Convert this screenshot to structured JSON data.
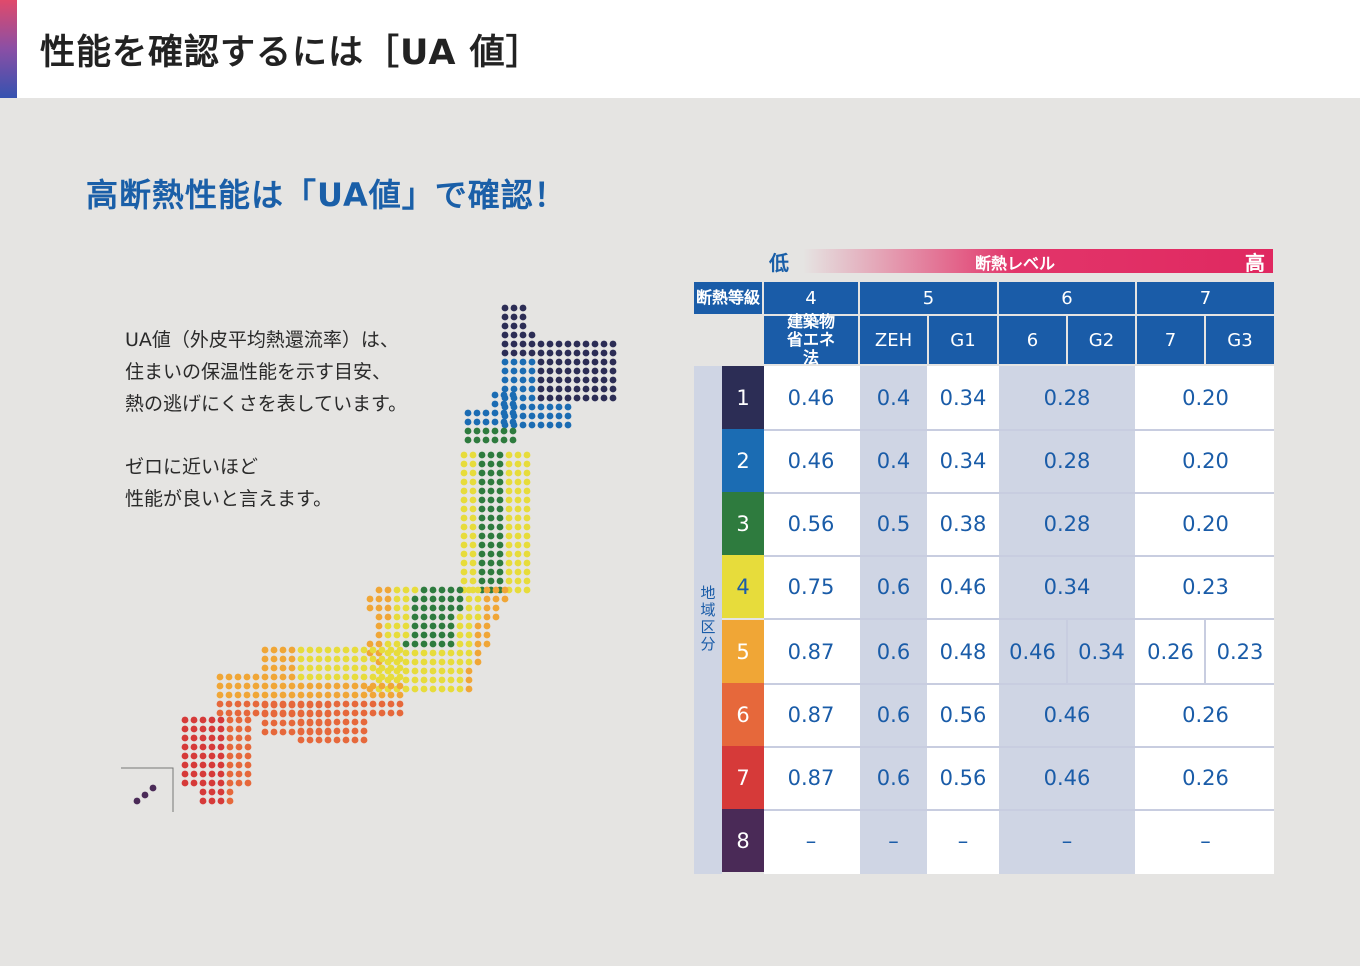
{
  "header": {
    "title": "性能を確認するには［UA 値］"
  },
  "subheading": "高断熱性能は「UA値」で確認！",
  "description": {
    "lines": [
      "UA値（外皮平均熱還流率）は、",
      "住まいの保温性能を示す目安、",
      "熱の逃げにくさを表しています。"
    ],
    "lines2": [
      "ゼロに近いほど",
      "性能が良いと言えます。"
    ]
  },
  "colors": {
    "region1": "#2c2d55",
    "region2": "#1b6cb3",
    "region3": "#2e7b3e",
    "region4": "#e7dc3b",
    "region5": "#f0a636",
    "region6": "#e6683b",
    "region7": "#d63a39",
    "region8": "#4a2a57",
    "header_blue": "#1a5ca8",
    "shade": "#cfd5e4"
  },
  "table": {
    "level_bar": {
      "low": "低",
      "mid": "断熱レベル",
      "high": "高"
    },
    "grade_label": "断熱等級",
    "grades": [
      "4",
      "5",
      "6",
      "7"
    ],
    "subheaders": [
      "建築物 省エネ法",
      "ZEH",
      "G1",
      "6",
      "G2",
      "7",
      "G3"
    ],
    "region_label": "地域区分",
    "rows": [
      {
        "n": "1",
        "c4": "0.46",
        "zeh": "0.4",
        "g1": "0.34",
        "g6": "0.28",
        "g7": "0.20"
      },
      {
        "n": "2",
        "c4": "0.46",
        "zeh": "0.4",
        "g1": "0.34",
        "g6": "0.28",
        "g7": "0.20"
      },
      {
        "n": "3",
        "c4": "0.56",
        "zeh": "0.5",
        "g1": "0.38",
        "g6": "0.28",
        "g7": "0.20"
      },
      {
        "n": "4",
        "c4": "0.75",
        "zeh": "0.6",
        "g1": "0.46",
        "g6": "0.34",
        "g7": "0.23"
      },
      {
        "n": "5",
        "c4": "0.87",
        "zeh": "0.6",
        "g1": "0.48",
        "g6a": "0.46",
        "g6b": "0.34",
        "g7a": "0.26",
        "g7b": "0.23"
      },
      {
        "n": "6",
        "c4": "0.87",
        "zeh": "0.6",
        "g1": "0.56",
        "g6": "0.46",
        "g7": "0.26"
      },
      {
        "n": "7",
        "c4": "0.87",
        "zeh": "0.6",
        "g1": "0.56",
        "g6": "0.46",
        "g7": "0.26"
      },
      {
        "n": "8",
        "c4": "–",
        "zeh": "–",
        "g1": "–",
        "g6": "–",
        "g7": "–"
      }
    ]
  }
}
